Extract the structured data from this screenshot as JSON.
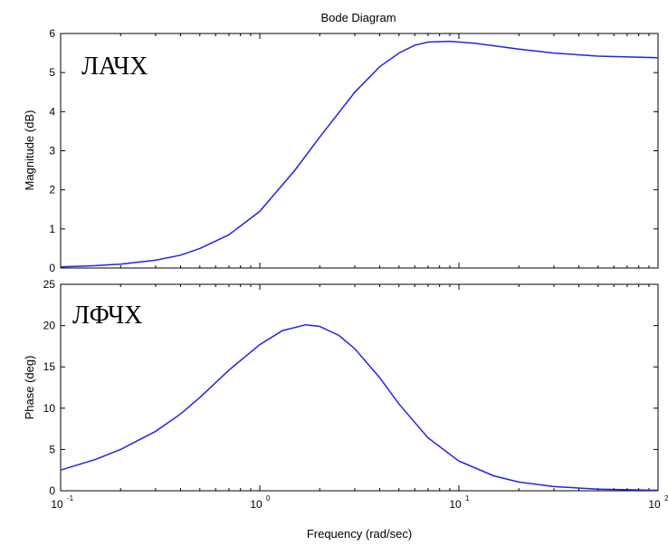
{
  "figure": {
    "title": "Bode Diagram",
    "xlabel": "Frequency (rad/sec)",
    "x_tick_labels": [
      {
        "base": "10",
        "exp": "-1"
      },
      {
        "base": "10",
        "exp": "0"
      },
      {
        "base": "10",
        "exp": "1"
      },
      {
        "base": "10",
        "exp": "2"
      }
    ],
    "colors": {
      "line": "#2222ee",
      "axes": "#000000",
      "background": "#ffffff"
    }
  },
  "chart_data": [
    {
      "type": "line",
      "annotation": "ЛАЧХ",
      "ylabel": "Magnitude (dB)",
      "xscale": "log",
      "xlim": [
        0.1,
        100
      ],
      "ylim": [
        0,
        6
      ],
      "yticks": [
        0,
        1,
        2,
        3,
        4,
        5,
        6
      ],
      "grid": false,
      "x": [
        0.1,
        0.15,
        0.2,
        0.3,
        0.4,
        0.5,
        0.7,
        1.0,
        1.5,
        2.0,
        3.0,
        4.0,
        5.0,
        6.0,
        7.0,
        9.0,
        12.0,
        20.0,
        30.0,
        50.0,
        100.0
      ],
      "y": [
        0.03,
        0.06,
        0.1,
        0.2,
        0.33,
        0.5,
        0.85,
        1.45,
        2.5,
        3.35,
        4.5,
        5.15,
        5.5,
        5.7,
        5.78,
        5.8,
        5.75,
        5.6,
        5.5,
        5.42,
        5.38
      ]
    },
    {
      "type": "line",
      "annotation": "ЛФЧХ",
      "ylabel": "Phase (deg)",
      "xscale": "log",
      "xlim": [
        0.1,
        100
      ],
      "ylim": [
        0,
        25
      ],
      "yticks": [
        0,
        5,
        10,
        15,
        20,
        25
      ],
      "grid": false,
      "x": [
        0.1,
        0.15,
        0.2,
        0.3,
        0.4,
        0.5,
        0.7,
        1.0,
        1.3,
        1.7,
        2.0,
        2.5,
        3.0,
        4.0,
        5.0,
        7.0,
        10.0,
        15.0,
        20.0,
        30.0,
        50.0,
        100.0
      ],
      "y": [
        2.5,
        3.8,
        5.0,
        7.2,
        9.3,
        11.3,
        14.6,
        17.7,
        19.4,
        20.1,
        19.9,
        18.8,
        17.2,
        13.7,
        10.5,
        6.4,
        3.6,
        1.8,
        1.05,
        0.5,
        0.2,
        0.05
      ]
    }
  ]
}
